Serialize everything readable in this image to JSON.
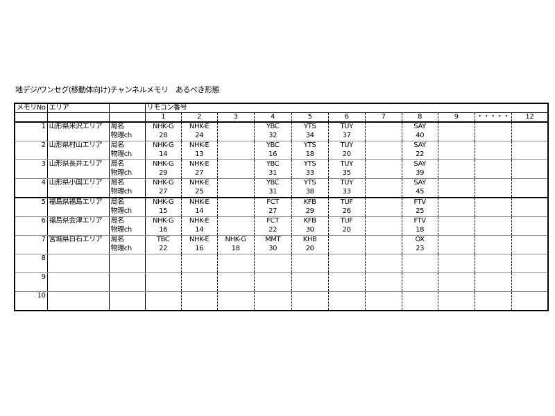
{
  "title": "地デジ/ワンセグ(移動体向け)チャンネルメモリ　あるべき形態",
  "table": {
    "header": {
      "memory_no": "メモリNo",
      "area": "エリア",
      "remote_number": "リモコン番号",
      "channel_columns": [
        "1",
        "2",
        "3",
        "4",
        "5",
        "6",
        "7",
        "8",
        "9",
        "・・・・・",
        "12"
      ]
    },
    "row_labels": {
      "station": "局名",
      "physical_ch": "物理ch"
    },
    "rows": [
      {
        "no": "1",
        "area": "山形県米沢エリア",
        "cells": [
          [
            "NHK-G",
            "28"
          ],
          [
            "NHK-E",
            "24"
          ],
          [
            "",
            ""
          ],
          [
            "YBC",
            "32"
          ],
          [
            "YTS",
            "34"
          ],
          [
            "TUY",
            "37"
          ],
          [
            "",
            ""
          ],
          [
            "SAY",
            "40"
          ],
          [
            "",
            ""
          ],
          [
            "",
            ""
          ],
          [
            "",
            ""
          ]
        ]
      },
      {
        "no": "2",
        "area": "山形県村山エリア",
        "cells": [
          [
            "NHK-G",
            "14"
          ],
          [
            "NHK-E",
            "13"
          ],
          [
            "",
            ""
          ],
          [
            "YBC",
            "16"
          ],
          [
            "YTS",
            "18"
          ],
          [
            "TUY",
            "20"
          ],
          [
            "",
            ""
          ],
          [
            "SAY",
            "22"
          ],
          [
            "",
            ""
          ],
          [
            "",
            ""
          ],
          [
            "",
            ""
          ]
        ]
      },
      {
        "no": "3",
        "area": "山形県長井エリア",
        "cells": [
          [
            "NHK-G",
            "29"
          ],
          [
            "NHK-E",
            "27"
          ],
          [
            "",
            ""
          ],
          [
            "YBC",
            "31"
          ],
          [
            "YTS",
            "33"
          ],
          [
            "TUY",
            "35"
          ],
          [
            "",
            ""
          ],
          [
            "SAY",
            "39"
          ],
          [
            "",
            ""
          ],
          [
            "",
            ""
          ],
          [
            "",
            ""
          ]
        ]
      },
      {
        "no": "4",
        "area": "山形県小国エリア",
        "cells": [
          [
            "NHK-G",
            "27"
          ],
          [
            "NHK-E",
            "25"
          ],
          [
            "",
            ""
          ],
          [
            "YBC",
            "31"
          ],
          [
            "YTS",
            "38"
          ],
          [
            "TUY",
            "33"
          ],
          [
            "",
            ""
          ],
          [
            "SAY",
            "45"
          ],
          [
            "",
            ""
          ],
          [
            "",
            ""
          ],
          [
            "",
            ""
          ]
        ]
      },
      {
        "no": "5",
        "area": "福島県福島エリア",
        "cells": [
          [
            "NHK-G",
            "15"
          ],
          [
            "NHK-E",
            "14"
          ],
          [
            "",
            ""
          ],
          [
            "FCT",
            "27"
          ],
          [
            "KFB",
            "29"
          ],
          [
            "TUF",
            "26"
          ],
          [
            "",
            ""
          ],
          [
            "FTV",
            "25"
          ],
          [
            "",
            ""
          ],
          [
            "",
            ""
          ],
          [
            "",
            ""
          ]
        ]
      },
      {
        "no": "6",
        "area": "福島県会津エリア",
        "cells": [
          [
            "NHK-G",
            "16"
          ],
          [
            "NHK-E",
            "14"
          ],
          [
            "",
            ""
          ],
          [
            "FCT",
            "22"
          ],
          [
            "KFB",
            "30"
          ],
          [
            "TUF",
            "20"
          ],
          [
            "",
            ""
          ],
          [
            "FTV",
            "18"
          ],
          [
            "",
            ""
          ],
          [
            "",
            ""
          ],
          [
            "",
            ""
          ]
        ]
      },
      {
        "no": "7",
        "area": "宮城県白石エリア",
        "cells": [
          [
            "TBC",
            "22"
          ],
          [
            "NHK-E",
            "16"
          ],
          [
            "NHK-G",
            "18"
          ],
          [
            "MMT",
            "30"
          ],
          [
            "KHB",
            "20"
          ],
          [
            "",
            ""
          ],
          [
            "",
            ""
          ],
          [
            "OX",
            "23"
          ],
          [
            "",
            ""
          ],
          [
            "",
            ""
          ],
          [
            "",
            ""
          ]
        ]
      },
      {
        "no": "8",
        "area": "",
        "cells": []
      },
      {
        "no": "9",
        "area": "",
        "cells": []
      },
      {
        "no": "10",
        "area": "",
        "cells": []
      }
    ]
  }
}
